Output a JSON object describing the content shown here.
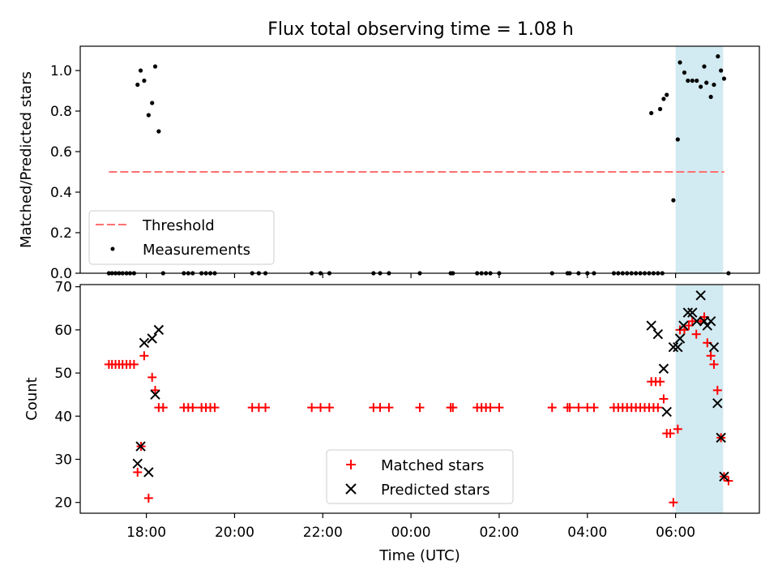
{
  "chart_data": {
    "type": "scatter",
    "title": "Flux total observing time = 1.08 h",
    "xlabel": "Time (UTC)",
    "x_ticks": [
      "18:00",
      "20:00",
      "22:00",
      "00:00",
      "02:00",
      "04:00",
      "06:00"
    ],
    "x_tick_hours": [
      18,
      20,
      22,
      24,
      26,
      28,
      30
    ],
    "xlim_hours": [
      16.5,
      31.9
    ],
    "shaded_interval_hours": [
      30.0,
      31.08
    ],
    "shade_color": "#add8e6",
    "top": {
      "ylabel": "Matched/Predicted stars",
      "ylim": [
        0,
        1.12
      ],
      "yticks": [
        "0.0",
        "0.2",
        "0.4",
        "0.6",
        "0.8",
        "1.0"
      ],
      "ytick_values": [
        0,
        0.2,
        0.4,
        0.6,
        0.8,
        1.0
      ],
      "threshold": {
        "name": "Threshold",
        "value": 0.5,
        "x_range": [
          17.15,
          31.1
        ],
        "color": "#ff7070"
      },
      "measurements": {
        "name": "Measurements",
        "color": "#000000",
        "points": [
          [
            17.15,
            0
          ],
          [
            17.22,
            0
          ],
          [
            17.3,
            0
          ],
          [
            17.38,
            0
          ],
          [
            17.46,
            0
          ],
          [
            17.55,
            0
          ],
          [
            17.63,
            0
          ],
          [
            17.72,
            0
          ],
          [
            17.8,
            0.93
          ],
          [
            17.87,
            1.0
          ],
          [
            17.95,
            0.95
          ],
          [
            18.05,
            0.78
          ],
          [
            18.13,
            0.84
          ],
          [
            18.2,
            1.02
          ],
          [
            18.28,
            0.7
          ],
          [
            18.38,
            0
          ],
          [
            18.85,
            0
          ],
          [
            18.95,
            0
          ],
          [
            19.05,
            0
          ],
          [
            19.25,
            0
          ],
          [
            19.35,
            0
          ],
          [
            19.45,
            0
          ],
          [
            19.55,
            0
          ],
          [
            20.4,
            0
          ],
          [
            20.55,
            0
          ],
          [
            20.7,
            0
          ],
          [
            21.75,
            0
          ],
          [
            21.95,
            0
          ],
          [
            22.15,
            0
          ],
          [
            23.15,
            0
          ],
          [
            23.3,
            0
          ],
          [
            23.5,
            0
          ],
          [
            24.2,
            0
          ],
          [
            24.9,
            0
          ],
          [
            24.95,
            0
          ],
          [
            25.5,
            0
          ],
          [
            25.6,
            0
          ],
          [
            25.7,
            0
          ],
          [
            25.8,
            0
          ],
          [
            26.0,
            0
          ],
          [
            27.2,
            0
          ],
          [
            27.55,
            0
          ],
          [
            27.6,
            0
          ],
          [
            27.8,
            0
          ],
          [
            28.0,
            0
          ],
          [
            28.15,
            0
          ],
          [
            28.6,
            0
          ],
          [
            28.7,
            0
          ],
          [
            28.8,
            0
          ],
          [
            28.9,
            0
          ],
          [
            29.0,
            0
          ],
          [
            29.1,
            0
          ],
          [
            29.2,
            0
          ],
          [
            29.3,
            0
          ],
          [
            29.4,
            0
          ],
          [
            29.5,
            0
          ],
          [
            29.6,
            0
          ],
          [
            29.7,
            0
          ],
          [
            29.45,
            0.79
          ],
          [
            29.65,
            0.81
          ],
          [
            29.73,
            0.86
          ],
          [
            29.8,
            0.88
          ],
          [
            29.95,
            0.36
          ],
          [
            30.05,
            0.66
          ],
          [
            30.1,
            1.04
          ],
          [
            30.2,
            0.99
          ],
          [
            30.28,
            0.95
          ],
          [
            30.38,
            0.95
          ],
          [
            30.48,
            0.95
          ],
          [
            30.57,
            0.92
          ],
          [
            30.65,
            1.02
          ],
          [
            30.7,
            0.94
          ],
          [
            30.8,
            0.87
          ],
          [
            30.87,
            0.93
          ],
          [
            30.96,
            1.07
          ],
          [
            31.03,
            1.0
          ],
          [
            31.1,
            0.96
          ],
          [
            31.2,
            0
          ]
        ]
      }
    },
    "bottom": {
      "ylabel": "Count",
      "ylim": [
        17.5,
        70.5
      ],
      "yticks": [
        "20",
        "30",
        "40",
        "50",
        "60",
        "70"
      ],
      "ytick_values": [
        20,
        30,
        40,
        50,
        60,
        70
      ],
      "series": [
        {
          "name": "Matched stars",
          "marker": "plus",
          "color": "#ff0000",
          "points": [
            [
              17.15,
              52
            ],
            [
              17.22,
              52
            ],
            [
              17.3,
              52
            ],
            [
              17.38,
              52
            ],
            [
              17.46,
              52
            ],
            [
              17.55,
              52
            ],
            [
              17.63,
              52
            ],
            [
              17.72,
              52
            ],
            [
              17.8,
              27
            ],
            [
              17.88,
              33
            ],
            [
              17.95,
              54
            ],
            [
              18.05,
              21
            ],
            [
              18.13,
              49
            ],
            [
              18.2,
              46
            ],
            [
              18.28,
              42
            ],
            [
              18.38,
              42
            ],
            [
              18.85,
              42
            ],
            [
              18.95,
              42
            ],
            [
              19.05,
              42
            ],
            [
              19.25,
              42
            ],
            [
              19.35,
              42
            ],
            [
              19.45,
              42
            ],
            [
              19.55,
              42
            ],
            [
              20.4,
              42
            ],
            [
              20.55,
              42
            ],
            [
              20.7,
              42
            ],
            [
              21.75,
              42
            ],
            [
              21.95,
              42
            ],
            [
              22.15,
              42
            ],
            [
              23.15,
              42
            ],
            [
              23.3,
              42
            ],
            [
              23.5,
              42
            ],
            [
              24.2,
              42
            ],
            [
              24.9,
              42
            ],
            [
              24.95,
              42
            ],
            [
              25.5,
              42
            ],
            [
              25.6,
              42
            ],
            [
              25.7,
              42
            ],
            [
              25.8,
              42
            ],
            [
              26.0,
              42
            ],
            [
              27.2,
              42
            ],
            [
              27.55,
              42
            ],
            [
              27.6,
              42
            ],
            [
              27.8,
              42
            ],
            [
              28.0,
              42
            ],
            [
              28.15,
              42
            ],
            [
              28.6,
              42
            ],
            [
              28.7,
              42
            ],
            [
              28.8,
              42
            ],
            [
              28.9,
              42
            ],
            [
              29.0,
              42
            ],
            [
              29.1,
              42
            ],
            [
              29.2,
              42
            ],
            [
              29.3,
              42
            ],
            [
              29.4,
              42
            ],
            [
              29.5,
              42
            ],
            [
              29.6,
              42
            ],
            [
              29.45,
              48
            ],
            [
              29.55,
              48
            ],
            [
              29.65,
              48
            ],
            [
              29.73,
              44
            ],
            [
              29.8,
              36
            ],
            [
              29.88,
              36
            ],
            [
              29.95,
              20
            ],
            [
              30.05,
              37
            ],
            [
              30.1,
              60
            ],
            [
              30.2,
              60
            ],
            [
              30.3,
              61
            ],
            [
              30.38,
              62
            ],
            [
              30.47,
              59
            ],
            [
              30.57,
              62
            ],
            [
              30.65,
              63
            ],
            [
              30.72,
              57
            ],
            [
              30.8,
              54
            ],
            [
              30.87,
              52
            ],
            [
              30.95,
              46
            ],
            [
              31.03,
              35
            ],
            [
              31.1,
              26
            ],
            [
              31.2,
              25
            ]
          ]
        },
        {
          "name": "Predicted stars",
          "marker": "x",
          "color": "#000000",
          "points": [
            [
              17.8,
              29
            ],
            [
              17.87,
              33
            ],
            [
              17.95,
              57
            ],
            [
              18.05,
              27
            ],
            [
              18.13,
              58
            ],
            [
              18.2,
              45
            ],
            [
              18.28,
              60
            ],
            [
              29.45,
              61
            ],
            [
              29.6,
              59
            ],
            [
              29.73,
              51
            ],
            [
              29.8,
              41
            ],
            [
              29.95,
              56
            ],
            [
              30.05,
              56
            ],
            [
              30.1,
              58
            ],
            [
              30.18,
              61
            ],
            [
              30.28,
              64
            ],
            [
              30.38,
              64
            ],
            [
              30.48,
              62
            ],
            [
              30.57,
              68
            ],
            [
              30.65,
              62
            ],
            [
              30.72,
              61
            ],
            [
              30.8,
              62
            ],
            [
              30.87,
              56
            ],
            [
              30.95,
              43
            ],
            [
              31.03,
              35
            ],
            [
              31.1,
              26
            ]
          ]
        }
      ]
    }
  }
}
